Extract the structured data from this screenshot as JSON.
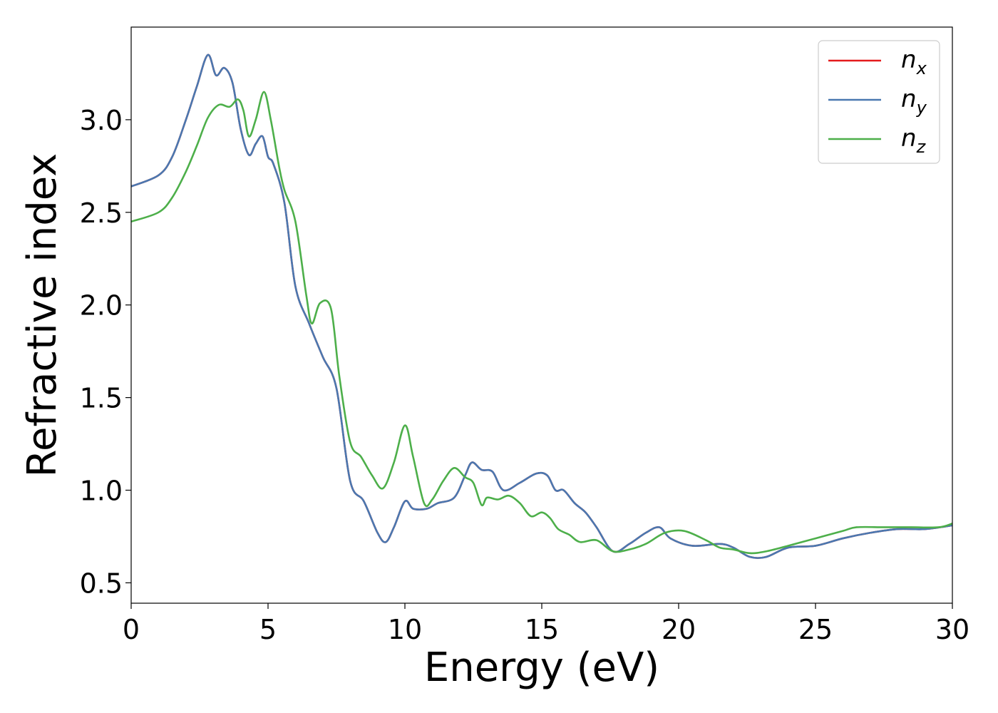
{
  "chart_data": {
    "type": "line",
    "title": "",
    "xlabel": "Energy (eV)",
    "ylabel": "Refractive index",
    "xlim": [
      0,
      30
    ],
    "ylim": [
      0.39,
      3.5
    ],
    "xticks": [
      "0",
      "5",
      "10",
      "15",
      "20",
      "25",
      "30"
    ],
    "yticks": [
      "0.5",
      "1.0",
      "1.5",
      "2.0",
      "2.5",
      "3.0"
    ],
    "grid": false,
    "legend_position": "top-right",
    "series": [
      {
        "name": "n_x",
        "label_main": "n",
        "label_sub": "x",
        "color": "#e41a1c",
        "x": [
          0,
          1,
          1.5,
          2,
          2.4,
          2.8,
          3.1,
          3.4,
          3.7,
          4,
          4.3,
          4.55,
          4.8,
          5.0,
          5.2,
          5.6,
          6.0,
          6.5,
          7.0,
          7.5,
          8.0,
          8.5,
          9.0,
          9.3,
          9.6,
          10.0,
          10.3,
          10.8,
          11.2,
          11.8,
          12.2,
          12.45,
          12.8,
          13.2,
          13.6,
          14.2,
          14.8,
          15.2,
          15.5,
          15.8,
          16.2,
          16.6,
          17.0,
          17.6,
          18.2,
          18.8,
          19.3,
          19.7,
          20.5,
          21.5,
          22.0,
          22.6,
          23.2,
          24.0,
          25.0,
          26.0,
          27.0,
          28.0,
          29.0,
          30.0
        ],
        "y": [
          2.64,
          2.7,
          2.8,
          3.0,
          3.18,
          3.35,
          3.24,
          3.28,
          3.2,
          2.95,
          2.81,
          2.87,
          2.91,
          2.8,
          2.76,
          2.55,
          2.1,
          1.9,
          1.72,
          1.55,
          1.05,
          0.94,
          0.77,
          0.72,
          0.8,
          0.94,
          0.9,
          0.9,
          0.93,
          0.96,
          1.08,
          1.15,
          1.11,
          1.1,
          1.0,
          1.04,
          1.09,
          1.08,
          1.0,
          1.0,
          0.93,
          0.88,
          0.8,
          0.67,
          0.71,
          0.77,
          0.8,
          0.74,
          0.7,
          0.71,
          0.69,
          0.64,
          0.64,
          0.69,
          0.7,
          0.74,
          0.77,
          0.79,
          0.79,
          0.81
        ]
      },
      {
        "name": "n_y",
        "label_main": "n",
        "label_sub": "y",
        "color": "#4a78b0",
        "x": [
          0,
          1,
          1.5,
          2,
          2.4,
          2.8,
          3.1,
          3.4,
          3.7,
          4,
          4.3,
          4.55,
          4.8,
          5.0,
          5.2,
          5.6,
          6.0,
          6.5,
          7.0,
          7.5,
          8.0,
          8.5,
          9.0,
          9.3,
          9.6,
          10.0,
          10.3,
          10.8,
          11.2,
          11.8,
          12.2,
          12.45,
          12.8,
          13.2,
          13.6,
          14.2,
          14.8,
          15.2,
          15.5,
          15.8,
          16.2,
          16.6,
          17.0,
          17.6,
          18.2,
          18.8,
          19.3,
          19.7,
          20.5,
          21.5,
          22.0,
          22.6,
          23.2,
          24.0,
          25.0,
          26.0,
          27.0,
          28.0,
          29.0,
          30.0
        ],
        "y": [
          2.64,
          2.7,
          2.8,
          3.0,
          3.18,
          3.35,
          3.24,
          3.28,
          3.2,
          2.95,
          2.81,
          2.87,
          2.91,
          2.8,
          2.76,
          2.55,
          2.1,
          1.9,
          1.72,
          1.55,
          1.05,
          0.94,
          0.77,
          0.72,
          0.8,
          0.94,
          0.9,
          0.9,
          0.93,
          0.96,
          1.08,
          1.15,
          1.11,
          1.1,
          1.0,
          1.04,
          1.09,
          1.08,
          1.0,
          1.0,
          0.93,
          0.88,
          0.8,
          0.67,
          0.71,
          0.77,
          0.8,
          0.74,
          0.7,
          0.71,
          0.69,
          0.64,
          0.64,
          0.69,
          0.7,
          0.74,
          0.77,
          0.79,
          0.79,
          0.81
        ]
      },
      {
        "name": "n_z",
        "label_main": "n",
        "label_sub": "z",
        "color": "#4daf4a",
        "x": [
          0,
          1,
          1.5,
          2,
          2.4,
          2.8,
          3.2,
          3.6,
          3.9,
          4.1,
          4.3,
          4.55,
          4.85,
          5.1,
          5.4,
          5.6,
          6.0,
          6.4,
          6.6,
          6.9,
          7.3,
          7.6,
          8.0,
          8.4,
          8.8,
          9.2,
          9.6,
          10.0,
          10.3,
          10.7,
          11.0,
          11.4,
          11.8,
          12.2,
          12.5,
          12.8,
          13.0,
          13.4,
          13.8,
          14.2,
          14.6,
          15.0,
          15.3,
          15.6,
          16.0,
          16.4,
          17.0,
          17.6,
          18.2,
          18.8,
          19.5,
          20.2,
          21.0,
          21.5,
          22.0,
          22.6,
          23.2,
          24.0,
          25.0,
          26.0,
          26.5,
          27.5,
          28.5,
          29.5,
          30.0
        ],
        "y": [
          2.45,
          2.5,
          2.58,
          2.72,
          2.86,
          3.01,
          3.08,
          3.07,
          3.11,
          3.05,
          2.91,
          3.0,
          3.15,
          3.0,
          2.75,
          2.62,
          2.45,
          2.05,
          1.9,
          2.01,
          1.98,
          1.62,
          1.26,
          1.18,
          1.08,
          1.01,
          1.15,
          1.35,
          1.18,
          0.93,
          0.95,
          1.05,
          1.12,
          1.07,
          1.04,
          0.92,
          0.96,
          0.95,
          0.97,
          0.93,
          0.86,
          0.88,
          0.85,
          0.79,
          0.76,
          0.72,
          0.73,
          0.67,
          0.68,
          0.71,
          0.77,
          0.78,
          0.73,
          0.69,
          0.68,
          0.66,
          0.67,
          0.7,
          0.74,
          0.78,
          0.8,
          0.8,
          0.8,
          0.8,
          0.82
        ]
      }
    ]
  }
}
